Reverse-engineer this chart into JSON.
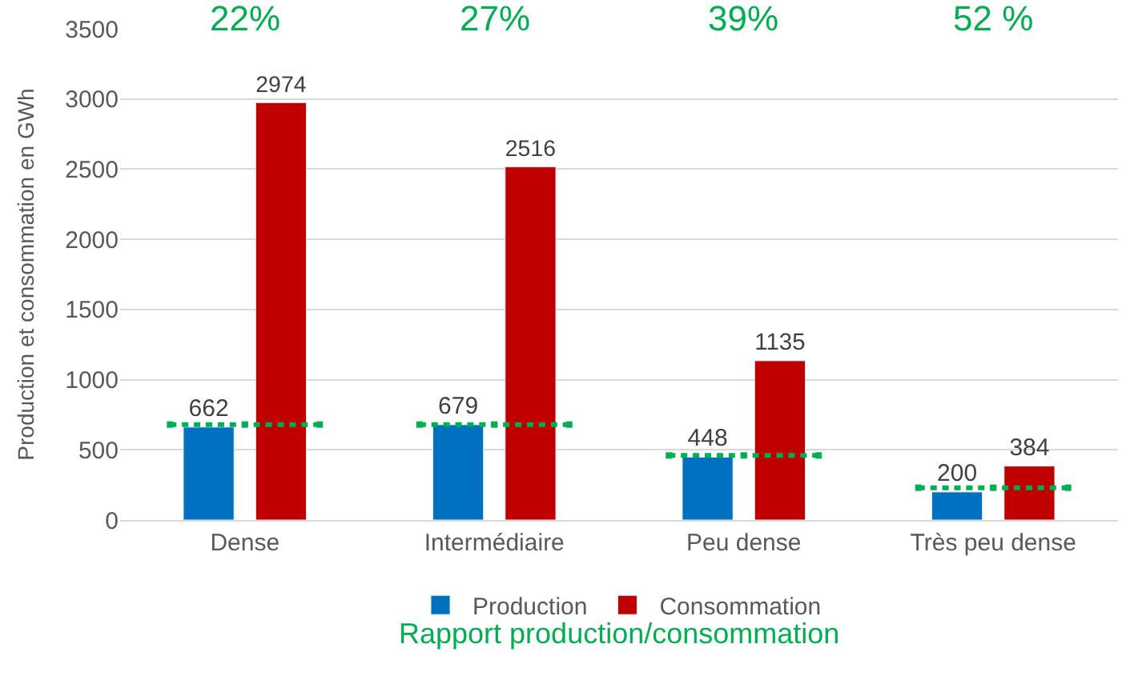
{
  "chart_data": {
    "type": "bar",
    "ylabel": "Production et consommation en GWh",
    "categories": [
      "Dense",
      "Intermédiaire",
      "Peu dense",
      "Très peu dense"
    ],
    "series": [
      {
        "name": "Production",
        "color": "#0070c0",
        "values": [
          662,
          679,
          448,
          200
        ]
      },
      {
        "name": "Consommation",
        "color": "#c00000",
        "values": [
          2974,
          2516,
          1135,
          384
        ]
      },
      {
        "type": "line",
        "color": "#00b050",
        "line_style": "dotted",
        "marker": "square",
        "values": [
          680,
          null,
          null,
          null
        ],
        "value_labels": [
          null,
          null,
          null,
          null
        ]
      },
      {
        "type": "line",
        "color": "#00b050",
        "line_style": "dotted",
        "marker": "square",
        "values": [
          null,
          680,
          null,
          null
        ],
        "value_labels": [
          null,
          null,
          null,
          null
        ]
      },
      {
        "type": "line",
        "color": "#00b050",
        "line_style": "dotted",
        "marker": "square",
        "values": [
          null,
          null,
          460,
          null
        ],
        "value_labels": [
          null,
          null,
          null,
          null
        ]
      },
      {
        "type": "line",
        "color": "#00b050",
        "line_style": "dotted",
        "marker": "square",
        "values": [
          null,
          null,
          null,
          230
        ],
        "value_labels": [
          null,
          null,
          null,
          null
        ]
      }
    ],
    "data_labels": true,
    "ylim": [
      0,
      3500
    ],
    "yticks": [
      0,
      500,
      1000,
      1500,
      2000,
      2500,
      3000,
      3500
    ],
    "grid": "y",
    "legend": "bottom",
    "annotations": [
      "22%",
      "27%",
      "39%",
      "52 %",
      "Rapport production/consommation"
    ]
  }
}
